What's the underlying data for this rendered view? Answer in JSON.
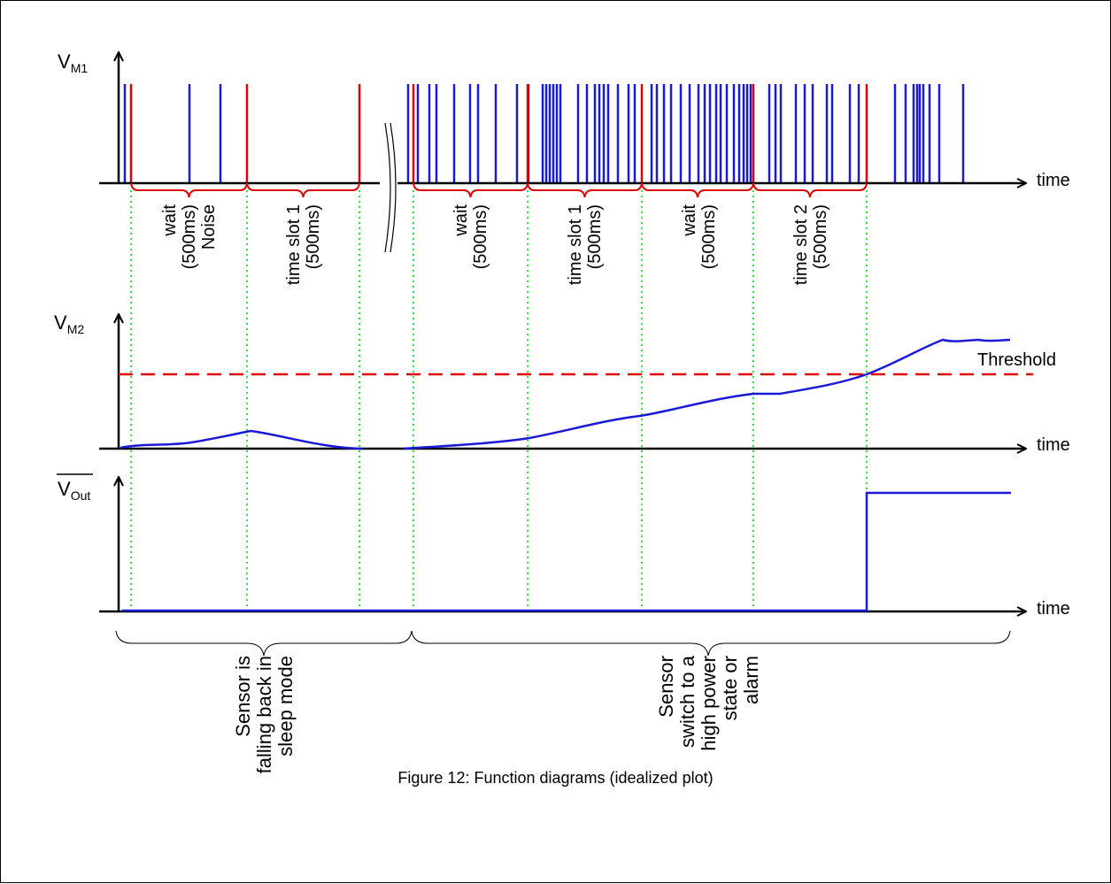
{
  "colors": {
    "pulse": "#1a1ad6",
    "window": "#e00000",
    "guide": "#00dd00",
    "signal": "#1a1ad6",
    "threshold": "#e00000"
  },
  "panels": {
    "m1": {
      "y_main": "V",
      "y_sub": "M1",
      "x_label": "time"
    },
    "m2": {
      "y_main": "V",
      "y_sub": "M2",
      "x_label": "time",
      "threshold_label": "Threshold"
    },
    "out": {
      "y_main": "V",
      "y_sub": "Out",
      "x_label": "time"
    }
  },
  "slots": [
    {
      "line1": "wait",
      "line2": "(500ms)",
      "line3": "Noise"
    },
    {
      "line1": "time slot 1",
      "line2": "(500ms)",
      "line3": ""
    },
    {
      "line1": "wait",
      "line2": "(500ms)",
      "line3": ""
    },
    {
      "line1": "time slot 1",
      "line2": "(500ms)",
      "line3": ""
    },
    {
      "line1": "wait",
      "line2": "(500ms)",
      "line3": ""
    },
    {
      "line1": "time slot 2",
      "line2": "(500ms)",
      "line3": ""
    }
  ],
  "phases": [
    {
      "line1": "Sensor is",
      "line2": "falling back in",
      "line3": "sleep mode",
      "line4": ""
    },
    {
      "line1": "Sensor",
      "line2": "switch to a",
      "line3": "high power",
      "line4": "state or",
      "line5": "alarm"
    }
  ],
  "caption": "Figure 12: Function diagrams (idealized plot)"
}
